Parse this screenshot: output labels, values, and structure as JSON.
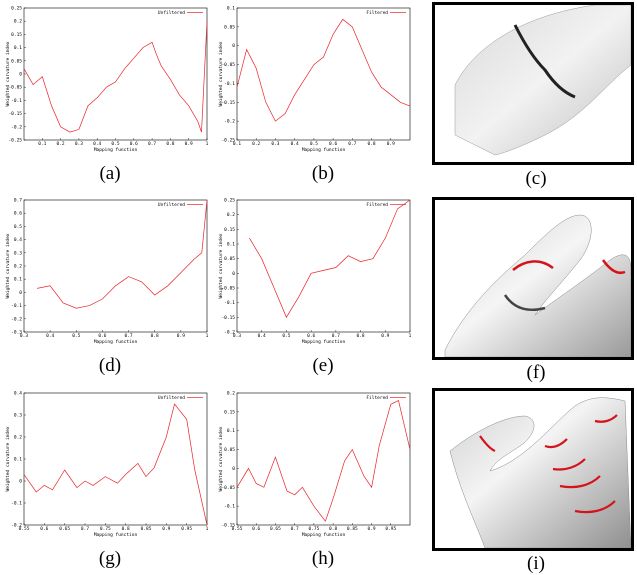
{
  "colors": {
    "series": "#e8232a",
    "axis": "#000000",
    "mesh_light": "#eeeeee",
    "mesh_dark": "#8a8a8a",
    "seam": "#d4141a"
  },
  "captions": {
    "a": "(a)",
    "b": "(b)",
    "c": "(c)",
    "d": "(d)",
    "e": "(e)",
    "f": "(f)",
    "g": "(g)",
    "h": "(h)",
    "i": "(i)"
  },
  "renders": {
    "c": "wrist-mesh-render",
    "f": "hand-mesh-render",
    "i": "hand-fingers-mesh-render"
  },
  "chart_data": [
    {
      "id": "a",
      "type": "line",
      "xlabel": "Mapping function",
      "ylabel": "Weighted curvature index",
      "series": [
        {
          "name": "Unfiltered",
          "x": [
            0.0,
            0.05,
            0.1,
            0.15,
            0.2,
            0.25,
            0.3,
            0.35,
            0.4,
            0.45,
            0.5,
            0.55,
            0.6,
            0.65,
            0.7,
            0.72,
            0.75,
            0.8,
            0.85,
            0.9,
            0.95,
            0.97,
            1.0
          ],
          "y": [
            0.02,
            -0.04,
            -0.01,
            -0.12,
            -0.2,
            -0.22,
            -0.21,
            -0.12,
            -0.09,
            -0.05,
            -0.03,
            0.02,
            0.06,
            0.1,
            0.12,
            0.08,
            0.03,
            -0.02,
            -0.08,
            -0.12,
            -0.18,
            -0.22,
            0.2
          ]
        }
      ],
      "xlim": [
        0.0,
        1.0
      ],
      "ylim": [
        -0.25,
        0.25
      ],
      "xticks": [
        "0.1",
        "0.2",
        "0.3",
        "0.4",
        "0.5",
        "0.6",
        "0.7",
        "0.8",
        "0.9",
        "1"
      ],
      "yticks": [
        "0.25",
        "0.2",
        "0.15",
        "0.1",
        "0.05",
        "0",
        "-0.05",
        "-0.1",
        "-0.15",
        "-0.2",
        "-0.25"
      ]
    },
    {
      "id": "b",
      "type": "line",
      "xlabel": "Mapping function",
      "ylabel": "Weighted curvature index",
      "series": [
        {
          "name": "Filtered",
          "x": [
            0.1,
            0.15,
            0.2,
            0.25,
            0.3,
            0.35,
            0.4,
            0.45,
            0.5,
            0.55,
            0.6,
            0.65,
            0.7,
            0.75,
            0.8,
            0.85,
            0.9,
            0.95,
            1.0
          ],
          "y": [
            -0.11,
            -0.01,
            -0.06,
            -0.15,
            -0.2,
            -0.18,
            -0.13,
            -0.09,
            -0.05,
            -0.03,
            0.03,
            0.07,
            0.05,
            -0.01,
            -0.07,
            -0.11,
            -0.13,
            -0.15,
            -0.16
          ]
        }
      ],
      "xlim": [
        0.1,
        1.0
      ],
      "ylim": [
        -0.25,
        0.1
      ],
      "xticks": [
        "0.1",
        "0.2",
        "0.3",
        "0.4",
        "0.5",
        "0.6",
        "0.7",
        "0.8",
        "0.9"
      ],
      "yticks": [
        "0.1",
        "0.05",
        "0",
        "-0.05",
        "-0.1",
        "-0.15",
        "-0.2",
        "-0.25"
      ]
    },
    {
      "id": "d",
      "type": "line",
      "xlabel": "Mapping function",
      "ylabel": "Weighted curvature index",
      "series": [
        {
          "name": "Unfiltered",
          "x": [
            0.35,
            0.4,
            0.45,
            0.5,
            0.55,
            0.6,
            0.65,
            0.7,
            0.75,
            0.8,
            0.85,
            0.9,
            0.95,
            0.98,
            1.0
          ],
          "y": [
            0.03,
            0.05,
            -0.08,
            -0.12,
            -0.1,
            -0.05,
            0.05,
            0.12,
            0.08,
            -0.02,
            0.05,
            0.15,
            0.25,
            0.3,
            0.7
          ]
        }
      ],
      "xlim": [
        0.3,
        1.0
      ],
      "ylim": [
        -0.3,
        0.7
      ],
      "xticks": [
        "0.3",
        "0.4",
        "0.5",
        "0.6",
        "0.7",
        "0.8",
        "0.9",
        "1"
      ],
      "yticks": [
        "0.7",
        "0.6",
        "0.5",
        "0.4",
        "0.3",
        "0.2",
        "0.1",
        "0",
        "-0.1",
        "-0.2",
        "-0.3"
      ]
    },
    {
      "id": "e",
      "type": "line",
      "xlabel": "Mapping function",
      "ylabel": "Weighted curvature index",
      "series": [
        {
          "name": "Filtered",
          "x": [
            0.35,
            0.4,
            0.45,
            0.5,
            0.55,
            0.6,
            0.65,
            0.7,
            0.75,
            0.8,
            0.85,
            0.9,
            0.95,
            1.0
          ],
          "y": [
            0.12,
            0.05,
            -0.05,
            -0.15,
            -0.08,
            0.0,
            0.01,
            0.02,
            0.06,
            0.04,
            0.05,
            0.12,
            0.22,
            0.25
          ]
        }
      ],
      "xlim": [
        0.3,
        1.0
      ],
      "ylim": [
        -0.2,
        0.25
      ],
      "xticks": [
        "0.3",
        "0.4",
        "0.5",
        "0.6",
        "0.7",
        "0.8",
        "0.9",
        "1"
      ],
      "yticks": [
        "0.25",
        "0.2",
        "0.15",
        "0.1",
        "0.05",
        "0",
        "-0.05",
        "-0.1",
        "-0.15",
        "-0.2"
      ]
    },
    {
      "id": "g",
      "type": "line",
      "xlabel": "Mapping function",
      "ylabel": "Weighted curvature index",
      "series": [
        {
          "name": "Unfiltered",
          "x": [
            0.55,
            0.58,
            0.6,
            0.62,
            0.65,
            0.68,
            0.7,
            0.72,
            0.75,
            0.78,
            0.8,
            0.83,
            0.85,
            0.87,
            0.9,
            0.92,
            0.95,
            0.97,
            1.0
          ],
          "y": [
            0.03,
            -0.05,
            -0.02,
            -0.04,
            0.05,
            -0.03,
            0.0,
            -0.02,
            0.02,
            -0.01,
            0.03,
            0.08,
            0.02,
            0.06,
            0.2,
            0.35,
            0.28,
            0.05,
            -0.2
          ]
        }
      ],
      "xlim": [
        0.55,
        1.0
      ],
      "ylim": [
        -0.2,
        0.4
      ],
      "xticks": [
        "0.55",
        "0.6",
        "0.65",
        "0.7",
        "0.75",
        "0.8",
        "0.85",
        "0.9",
        "0.95",
        "1"
      ],
      "yticks": [
        "0.4",
        "0.3",
        "0.2",
        "0.1",
        "0",
        "-0.1",
        "-0.2"
      ]
    },
    {
      "id": "h",
      "type": "line",
      "xlabel": "Mapping function",
      "ylabel": "Weighted curvature index",
      "series": [
        {
          "name": "Filtered",
          "x": [
            0.55,
            0.58,
            0.6,
            0.62,
            0.65,
            0.68,
            0.7,
            0.72,
            0.75,
            0.78,
            0.8,
            0.83,
            0.85,
            0.88,
            0.9,
            0.92,
            0.95,
            0.97,
            1.0
          ],
          "y": [
            -0.05,
            0.0,
            -0.04,
            -0.05,
            0.03,
            -0.06,
            -0.07,
            -0.05,
            -0.1,
            -0.14,
            -0.08,
            0.02,
            0.05,
            -0.02,
            -0.05,
            0.06,
            0.17,
            0.18,
            0.05
          ]
        }
      ],
      "xlim": [
        0.55,
        1.0
      ],
      "ylim": [
        -0.15,
        0.2
      ],
      "xticks": [
        "0.55",
        "0.6",
        "0.65",
        "0.7",
        "0.75",
        "0.8",
        "0.85",
        "0.9",
        "0.95"
      ],
      "yticks": [
        "0.2",
        "0.15",
        "0.1",
        "0.05",
        "0",
        "-0.05",
        "-0.1",
        "-0.15"
      ]
    }
  ]
}
